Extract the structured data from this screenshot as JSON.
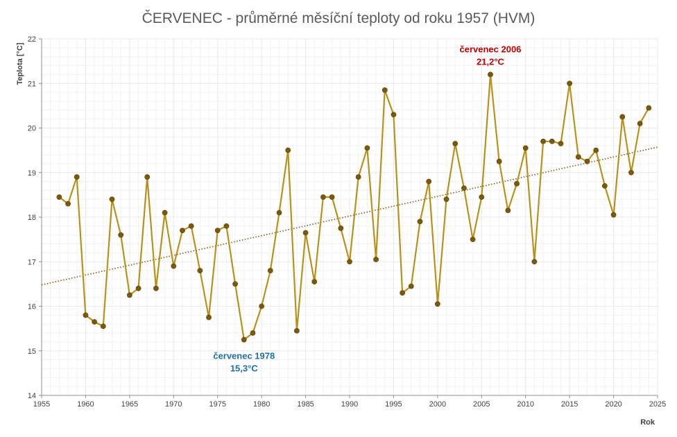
{
  "chart_data": {
    "type": "line",
    "title": "ČERVENEC - průměrné měsíční teploty od roku 1957 (HVM)",
    "ylabel": "Teplota [°C]",
    "xlabel": "Rok",
    "xlim": [
      1955,
      2025
    ],
    "ylim": [
      14,
      22
    ],
    "x_ticks": [
      1955,
      1960,
      1965,
      1970,
      1975,
      1980,
      1985,
      1990,
      1995,
      2000,
      2005,
      2010,
      2015,
      2020,
      2025
    ],
    "y_ticks": [
      14,
      15,
      16,
      17,
      18,
      19,
      20,
      21,
      22
    ],
    "grid": true,
    "colors": {
      "series": "#b8901a",
      "marker": "#7a5a0a",
      "trend": "#7a5a0a",
      "max_annotation": "#c00000",
      "min_annotation": "#1f6fa5",
      "grid": "#e8e8e8"
    },
    "series": [
      {
        "x": [
          1957,
          1958,
          1959,
          1960,
          1961,
          1962,
          1963,
          1964,
          1965,
          1966,
          1967,
          1968,
          1969,
          1970,
          1971,
          1972,
          1973,
          1974,
          1975,
          1976,
          1977,
          1978,
          1979,
          1980,
          1981,
          1982,
          1983,
          1984,
          1985,
          1986,
          1987,
          1988,
          1989,
          1990,
          1991,
          1992,
          1993,
          1994,
          1995,
          1996,
          1997,
          1998,
          1999,
          2000,
          2001,
          2002,
          2003,
          2004,
          2005,
          2006,
          2007,
          2008,
          2009,
          2010,
          2011,
          2012,
          2013,
          2014,
          2015,
          2016,
          2017,
          2018,
          2019,
          2020,
          2021,
          2022,
          2023,
          2024
        ],
        "values": [
          18.45,
          18.3,
          18.9,
          15.8,
          15.65,
          15.55,
          18.4,
          17.6,
          16.25,
          16.4,
          18.9,
          16.4,
          18.1,
          16.9,
          17.7,
          17.8,
          16.8,
          15.75,
          17.7,
          17.8,
          16.5,
          15.25,
          15.4,
          16.0,
          16.8,
          18.1,
          19.5,
          15.45,
          17.65,
          16.55,
          18.45,
          18.45,
          17.75,
          17.0,
          18.9,
          19.55,
          17.05,
          20.85,
          20.3,
          16.3,
          16.45,
          17.9,
          18.8,
          16.05,
          18.4,
          19.65,
          18.65,
          17.5,
          18.45,
          21.2,
          19.25,
          18.15,
          18.75,
          19.55,
          17.0,
          19.7,
          19.7,
          19.65,
          21.0,
          19.35,
          19.25,
          19.5,
          18.7,
          18.05,
          20.25,
          19.0,
          20.1,
          20.45
        ]
      }
    ],
    "trendline": {
      "x": [
        1955,
        2025
      ],
      "y": [
        16.48,
        19.57
      ]
    },
    "annotations": [
      {
        "line1": "červenec 2006",
        "line2": "21,2°C",
        "x": 2006,
        "y": 21.2
      },
      {
        "line1": "červenec 1978",
        "line2": "15,3°C",
        "x": 1978,
        "y": 15.25
      }
    ]
  }
}
